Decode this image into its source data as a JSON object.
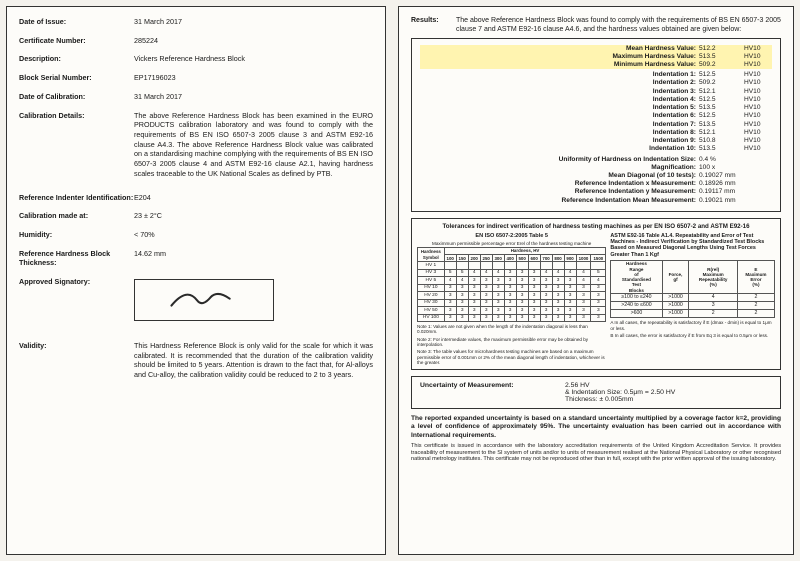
{
  "left": {
    "date_of_issue": {
      "label": "Date of Issue:",
      "value": "31 March 2017"
    },
    "cert_no": {
      "label": "Certificate Number:",
      "value": "285224"
    },
    "description": {
      "label": "Description:",
      "value": "Vickers Reference Hardness Block"
    },
    "serial": {
      "label": "Block Serial Number:",
      "value": "EP17196023"
    },
    "date_cal": {
      "label": "Date of Calibration:",
      "value": "31 March 2017"
    },
    "cal_details": {
      "label": "Calibration Details:",
      "value": "The above Reference Hardness Block has been examined in the EURO PRODUCTS calibration laboratory and was found to comply with the requirements of BS EN ISO 6507-3 2005 clause 3 and ASTM E92-16 clause A4.3. The above Reference Hardness Block value was calibrated on a standardising machine complying  with the requirements of BS EN ISO 6507-3 2005 clause 4 and ASTM E92-16 clause A2.1, having hardness scales traceable to the UK National Scales as defined by PTB."
    },
    "indenter": {
      "label": "Reference Indenter Identification:",
      "value": "E204"
    },
    "cal_at": {
      "label": "Calibration made at:",
      "value": "23 ± 2°C"
    },
    "humidity": {
      "label": "Humidity:",
      "value": "< 70%"
    },
    "thickness": {
      "label": "Reference Hardness Block Thickness:",
      "value": "14.62 mm"
    },
    "signatory": {
      "label": "Approved Signatory:"
    },
    "validity": {
      "label": "Validity:",
      "value": "This Hardness Reference Block is only valid for the scale for which it was calibrated. It is recommended that the duration of the calibration validity should be limited to 5 years. Attention is drawn to the fact that, for Al-alloys and Cu-alloy, the calibration validity could be reduced to 2 to 3 years."
    }
  },
  "right": {
    "results_label": "Results:",
    "results_text": "The above Reference Hardness Block was found to comply with the requirements of BS EN 6507-3 2005 clause 7 and ASTM E92-16 clause A4.6, and the hardness values obtained are given below:",
    "summary": [
      {
        "k": "Mean Hardness Value:",
        "v": "512.2",
        "u": "HV10",
        "hl": true
      },
      {
        "k": "Maximum Hardness Value:",
        "v": "513.5",
        "u": "HV10",
        "hl": true
      },
      {
        "k": "Minimum Hardness Value:",
        "v": "509.2",
        "u": "HV10",
        "hl": true
      }
    ],
    "indents": [
      {
        "k": "Indentation 1:",
        "v": "512.5",
        "u": "HV10"
      },
      {
        "k": "Indentation 2:",
        "v": "509.2",
        "u": "HV10"
      },
      {
        "k": "Indentation 3:",
        "v": "512.1",
        "u": "HV10"
      },
      {
        "k": "Indentation 4:",
        "v": "512.5",
        "u": "HV10"
      },
      {
        "k": "Indentation 5:",
        "v": "513.5",
        "u": "HV10"
      },
      {
        "k": "Indentation 6:",
        "v": "512.5",
        "u": "HV10"
      },
      {
        "k": "Indentation 7:",
        "v": "513.5",
        "u": "HV10"
      },
      {
        "k": "Indentation 8:",
        "v": "512.1",
        "u": "HV10"
      },
      {
        "k": "Indentation 9:",
        "v": "510.8",
        "u": "HV10"
      },
      {
        "k": "Indentation 10:",
        "v": "513.5",
        "u": "HV10"
      }
    ],
    "extras": [
      {
        "k": "Uniformity of Hardness on Indentation Size:",
        "v": "0.4 %"
      },
      {
        "k": "Magnification:",
        "v": "100 x"
      },
      {
        "k": "Mean Diagonal (of 10 tests):",
        "v": "0.19027 mm"
      },
      {
        "k": "Reference Indentation x Measurement:",
        "v": "0.18926 mm"
      },
      {
        "k": "Reference Indentation y Measurement:",
        "v": "0.19117 mm"
      },
      {
        "k": "Reference Indentation Mean Measurement:",
        "v": "0.19021 mm"
      }
    ],
    "tol_header": "Tolerances for indirect verification of hardness testing machines as per EN ISO 6507-2 and ASTM E92-16",
    "tol_left_title": "EN ISO 6507-2:2005 Table 5",
    "tol_right_title": "ASTM E92-16 Table A1.4. Repeatability and Error of Test Machines - Indirect Verification by Standardized Test Blocks Based on Measured Diagonal Lengths Using Test Forces Greater Than 1 Kgf",
    "tol_left_caption": "Maximmum permissible percentage error Erel of the hardness testing machine",
    "tol_left": {
      "row_header": [
        "Hardness Symbol",
        "100",
        "150",
        "200",
        "250",
        "300",
        "400",
        "500",
        "600",
        "700",
        "800",
        "900",
        "1000",
        "1500"
      ],
      "rows": [
        [
          "HV 1",
          "",
          "",
          "",
          "",
          "",
          "",
          "",
          "",
          "",
          "",
          "",
          "",
          ""
        ],
        [
          "HV 3",
          "5",
          "5",
          "4",
          "4",
          "4",
          "3",
          "3",
          "3",
          "4",
          "4",
          "4",
          "4",
          "5"
        ],
        [
          "HV 5",
          "4",
          "4",
          "3",
          "3",
          "3",
          "3",
          "3",
          "3",
          "3",
          "3",
          "3",
          "4",
          "4"
        ],
        [
          "HV 10",
          "3",
          "3",
          "3",
          "3",
          "3",
          "3",
          "3",
          "3",
          "3",
          "3",
          "3",
          "3",
          "3"
        ],
        [
          "HV 20",
          "3",
          "3",
          "3",
          "3",
          "3",
          "3",
          "3",
          "3",
          "3",
          "3",
          "3",
          "3",
          "3"
        ],
        [
          "HV 30",
          "3",
          "3",
          "3",
          "3",
          "3",
          "3",
          "3",
          "3",
          "3",
          "3",
          "3",
          "3",
          "3"
        ],
        [
          "HV 50",
          "3",
          "3",
          "3",
          "3",
          "3",
          "3",
          "3",
          "3",
          "3",
          "3",
          "3",
          "3",
          "3"
        ],
        [
          "HV 100",
          "3",
          "3",
          "3",
          "3",
          "3",
          "3",
          "3",
          "3",
          "3",
          "3",
          "3",
          "3",
          "3"
        ]
      ]
    },
    "tol_right_table": {
      "header": [
        "Hardness Range of Standardised Test Blocks",
        "Force, gf",
        "R(rel) Maximum Repeatability (%)",
        "E Maximum Error (%)"
      ],
      "rows": [
        [
          "≥100 to ≤240",
          ">1000",
          "4",
          "2"
        ],
        [
          ">240 to ≤600",
          ">1000",
          "3",
          "2"
        ],
        [
          ">600",
          ">1000",
          "2",
          "2"
        ]
      ]
    },
    "notes_left": [
      "Note 1: Values are not given when the length of the indentation diagonal is less than 0.020mm.",
      "Note 2: For intermediate values, the maximum permissible error may be obtained by interpolation.",
      "Note 3: The table values for microhardness testing machines are based on a maximum permissible error of 0.001mm or 2% of the mean diagonal length of indentation, whichever is the greater."
    ],
    "notes_right": [
      "A In all cases, the repeatability is satisfactory if E (dmax - dmin) is equal to 1μm or less.",
      "B In all cases, the error is satisfactory if E from Eq 3 is equal to 0.5μm or less."
    ],
    "uom": {
      "label": "Uncertainty of Measurement:",
      "v1": "2.56 HV",
      "v2": "& Indentation Size: 0.5μm = 2.50 HV",
      "v3": "Thickness: ± 0.005mm"
    },
    "footer_bold": "The reported expanded uncertainty is based on a standard uncertainty multiplied by a coverage factor k=2, providing a level of confidence of approximately 95%. The uncertainty evaluation has been carried out in accordance with International requirements.",
    "footer_sm": "This certificate is issued in accordance with the laboratory accreditation requirements of the United Kingdom Accreditation Service. It provides traceability of measurement to the SI system of units and/or to units of measurement realised at the National Physical Laboratory or other recognised national metrology institutes. This certificate may not be reproduced other than in full, except with the prior written approval of the issuing laboratory."
  }
}
